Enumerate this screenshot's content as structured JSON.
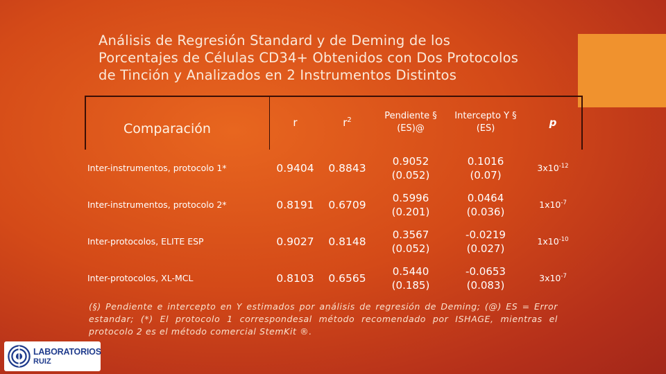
{
  "title": {
    "lines": [
      "Análisis de Regresión Standard y de Deming  de los",
      "Porcentajes de Células CD34+ Obtenidos con Dos Protocolos",
      "de Tinción y Analizados en 2 Instrumentos Distintos"
    ]
  },
  "table": {
    "headers": {
      "comparison": "Comparación",
      "r": "r",
      "r2_base": "r",
      "r2_sup": "2",
      "slope_l1": "Pendiente §",
      "slope_l2": "(ES)@",
      "intercept_l1": "Intercepto Y §",
      "intercept_l2": "(ES)",
      "p": "p"
    },
    "rows": [
      {
        "label": "Inter-instrumentos, protocolo 1*",
        "r": "0.9404",
        "r2": "0.8843",
        "slope": "0.9052",
        "slope_es": "(0.052)",
        "intercept": "0.1016",
        "intercept_es": "(0.07)",
        "p_base": "3x10",
        "p_exp": "-12"
      },
      {
        "label": "Inter-instrumentos, protocolo 2*",
        "r": "0.8191",
        "r2": "0.6709",
        "slope": "0.5996",
        "slope_es": "(0.201)",
        "intercept": "0.0464",
        "intercept_es": "(0.036)",
        "p_base": "1x10",
        "p_exp": "-7"
      },
      {
        "label": "Inter-protocolos, ELITE ESP",
        "r": "0.9027",
        "r2": "0.8148",
        "slope": "0.3567",
        "slope_es": "(0.052)",
        "intercept": "-0.0219",
        "intercept_es": "(0.027)",
        "p_base": "1x10",
        "p_exp": "-10"
      },
      {
        "label": "Inter-protocolos, XL-MCL",
        "r": "0.8103",
        "r2": "0.6565",
        "slope": "0.5440",
        "slope_es": "(0.185)",
        "intercept": "-0.0653",
        "intercept_es": "(0.083)",
        "p_base": "3x10",
        "p_exp": "-7"
      }
    ]
  },
  "footnote": "(§) Pendiente e intercepto en Y estimados por análisis de regresión de Deming; (@) ES = Error estandar; (*) El protocolo 1 correspondesal método recomendado por ISHAGE, mientras el protocolo 2 es el método comercial StemKit ®.",
  "logo": {
    "line1": "LABORATORIOS",
    "line2": "RUIZ"
  },
  "colors": {
    "accent_square": "#f0922e",
    "logo_text": "#1f3b8c"
  }
}
